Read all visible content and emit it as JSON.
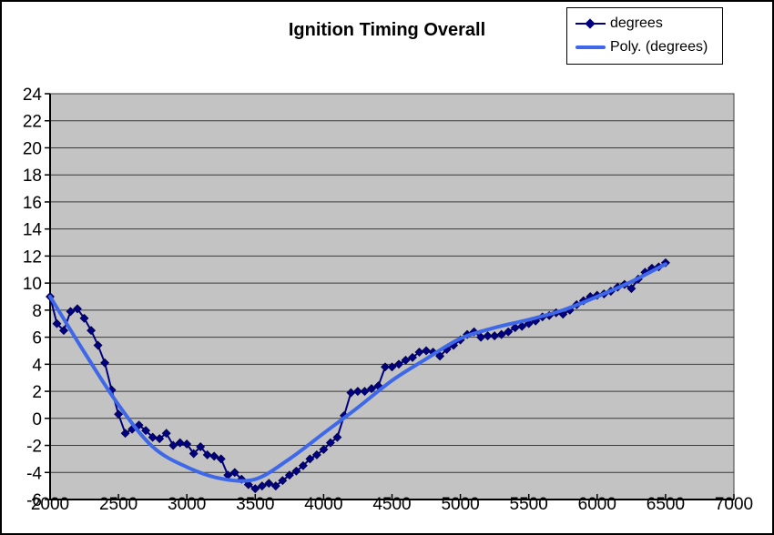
{
  "chart_data": {
    "type": "line",
    "title": "Ignition Timing Overall",
    "xlabel": "",
    "ylabel": "",
    "xlim": [
      2000,
      7000
    ],
    "ylim": [
      -6,
      24
    ],
    "x_ticks": [
      2000,
      2500,
      3000,
      3500,
      4000,
      4500,
      5000,
      5500,
      6000,
      6500,
      7000
    ],
    "y_ticks": [
      24,
      22,
      20,
      18,
      16,
      14,
      12,
      10,
      8,
      6,
      4,
      2,
      0,
      -2,
      -4,
      -6
    ],
    "grid": "horizontal",
    "legend_position": "top-right",
    "series": [
      {
        "name": "degrees",
        "style": "line-with-markers",
        "marker": "diamond",
        "color": "#000080",
        "x": [
          2000,
          2050,
          2100,
          2150,
          2200,
          2250,
          2300,
          2350,
          2400,
          2450,
          2500,
          2550,
          2600,
          2650,
          2700,
          2750,
          2800,
          2850,
          2900,
          2950,
          3000,
          3050,
          3100,
          3150,
          3200,
          3250,
          3300,
          3350,
          3400,
          3450,
          3500,
          3550,
          3600,
          3650,
          3700,
          3750,
          3800,
          3850,
          3900,
          3950,
          4000,
          4050,
          4100,
          4150,
          4200,
          4250,
          4300,
          4350,
          4400,
          4450,
          4500,
          4550,
          4600,
          4650,
          4700,
          4750,
          4800,
          4850,
          4900,
          4950,
          5000,
          5050,
          5100,
          5150,
          5200,
          5250,
          5300,
          5350,
          5400,
          5450,
          5500,
          5550,
          5600,
          5650,
          5700,
          5750,
          5800,
          5850,
          5900,
          5950,
          6000,
          6050,
          6100,
          6150,
          6200,
          6250,
          6300,
          6350,
          6400,
          6450,
          6500
        ],
        "values": [
          9,
          7,
          6.5,
          7.9,
          8.1,
          7.4,
          6.5,
          5.4,
          4.1,
          2.1,
          0.3,
          -1.1,
          -0.8,
          -0.5,
          -0.9,
          -1.4,
          -1.5,
          -1.1,
          -2,
          -1.8,
          -1.9,
          -2.6,
          -2.1,
          -2.7,
          -2.8,
          -3,
          -4.2,
          -4,
          -4.5,
          -4.9,
          -5.2,
          -5,
          -4.8,
          -5,
          -4.6,
          -4.2,
          -3.9,
          -3.5,
          -3,
          -2.7,
          -2.3,
          -1.8,
          -1.4,
          0.2,
          1.9,
          2,
          2,
          2.2,
          2.4,
          3.8,
          3.8,
          4,
          4.3,
          4.5,
          4.9,
          5,
          4.9,
          4.6,
          5.1,
          5.4,
          5.8,
          6.2,
          6.4,
          6,
          6.1,
          6.1,
          6.2,
          6.4,
          6.7,
          6.8,
          7,
          7.2,
          7.5,
          7.6,
          7.8,
          7.7,
          8,
          8.4,
          8.7,
          9,
          9.1,
          9.2,
          9.4,
          9.7,
          9.9,
          9.6,
          10.3,
          10.8,
          11.1,
          11.2,
          11.5
        ]
      },
      {
        "name": "Poly. (degrees)",
        "style": "smooth-trendline",
        "color": "#3E68E8",
        "x": [
          2000,
          2250,
          2500,
          2750,
          3000,
          3250,
          3500,
          3750,
          4000,
          4250,
          4500,
          4750,
          5000,
          5250,
          5500,
          5750,
          6000,
          6250,
          6500
        ],
        "values": [
          9,
          4.9,
          1,
          -2.1,
          -3.6,
          -4.45,
          -4.5,
          -3,
          -1.1,
          0.8,
          2.8,
          4.4,
          5.9,
          6.7,
          7.3,
          8,
          9,
          10.1,
          11.4
        ]
      }
    ]
  },
  "legend": {
    "items": [
      {
        "label": "degrees",
        "swatch": "navy-line-with-diamond"
      },
      {
        "label": "Poly. (degrees)",
        "swatch": "blue-thick-line"
      }
    ]
  },
  "colors": {
    "series_degrees": "#000080",
    "series_degrees_edge": "#000050",
    "series_poly": "#3E68E8",
    "plot_bg": "#C3C3C3",
    "gridline": "#3a3a3a",
    "axis": "#000000",
    "chart_border": "#000000",
    "text": "#000000"
  }
}
